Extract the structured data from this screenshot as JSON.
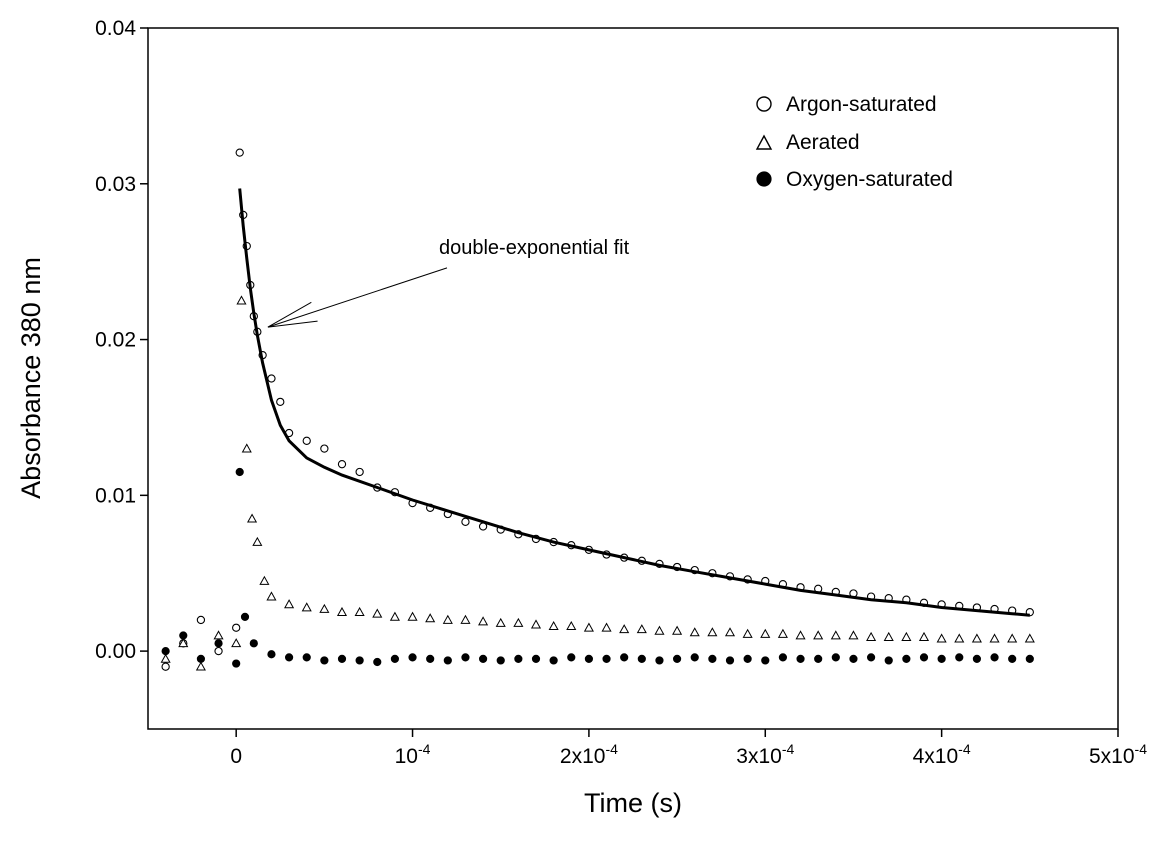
{
  "chart_data": {
    "type": "scatter",
    "xlabel": "Time (s)",
    "ylabel": "Absorbance 380 nm",
    "xlim": [
      -5e-05,
      0.0005
    ],
    "ylim": [
      -0.005,
      0.04
    ],
    "x_ticks": [
      {
        "value": 0,
        "base": "0",
        "exp": ""
      },
      {
        "value": 0.0001,
        "base": "10",
        "exp": "-4"
      },
      {
        "value": 0.0002,
        "base": "2x10",
        "exp": "-4"
      },
      {
        "value": 0.0003,
        "base": "3x10",
        "exp": "-4"
      },
      {
        "value": 0.0004,
        "base": "4x10",
        "exp": "-4"
      },
      {
        "value": 0.0005,
        "base": "5x10",
        "exp": "-4"
      }
    ],
    "y_ticks": [
      {
        "value": 0,
        "label": "0.00"
      },
      {
        "value": 0.01,
        "label": "0.01"
      },
      {
        "value": 0.02,
        "label": "0.02"
      },
      {
        "value": 0.03,
        "label": "0.03"
      },
      {
        "value": 0.04,
        "label": "0.04"
      }
    ],
    "grid": false,
    "legend_position": "top-right",
    "series": [
      {
        "name": "Argon-saturated",
        "marker": "open-circle",
        "x": [
          -4e-05,
          -3e-05,
          -2e-05,
          -1e-05,
          0,
          2e-06,
          4e-06,
          6e-06,
          8e-06,
          1e-05,
          1.2e-05,
          1.5e-05,
          2e-05,
          2.5e-05,
          3e-05,
          4e-05,
          5e-05,
          6e-05,
          7e-05,
          8e-05,
          9e-05,
          0.0001,
          0.00011,
          0.00012,
          0.00013,
          0.00014,
          0.00015,
          0.00016,
          0.00017,
          0.00018,
          0.00019,
          0.0002,
          0.00021,
          0.00022,
          0.00023,
          0.00024,
          0.00025,
          0.00026,
          0.00027,
          0.00028,
          0.00029,
          0.0003,
          0.00031,
          0.00032,
          0.00033,
          0.00034,
          0.00035,
          0.00036,
          0.00037,
          0.00038,
          0.00039,
          0.0004,
          0.00041,
          0.00042,
          0.00043,
          0.00044,
          0.00045
        ],
        "y": [
          -0.001,
          0.0005,
          0.002,
          0,
          0.0015,
          0.032,
          0.028,
          0.026,
          0.0235,
          0.0215,
          0.0205,
          0.019,
          0.0175,
          0.016,
          0.014,
          0.0135,
          0.013,
          0.012,
          0.0115,
          0.0105,
          0.0102,
          0.0095,
          0.0092,
          0.0088,
          0.0083,
          0.008,
          0.0078,
          0.0075,
          0.0072,
          0.007,
          0.0068,
          0.0065,
          0.0062,
          0.006,
          0.0058,
          0.0056,
          0.0054,
          0.0052,
          0.005,
          0.0048,
          0.0046,
          0.0045,
          0.0043,
          0.0041,
          0.004,
          0.0038,
          0.0037,
          0.0035,
          0.0034,
          0.0033,
          0.0031,
          0.003,
          0.0029,
          0.0028,
          0.0027,
          0.0026,
          0.0025
        ]
      },
      {
        "name": "Aerated",
        "marker": "open-triangle",
        "x": [
          -4e-05,
          -3e-05,
          -2e-05,
          -1e-05,
          0,
          3e-06,
          6e-06,
          9e-06,
          1.2e-05,
          1.6e-05,
          2e-05,
          3e-05,
          4e-05,
          5e-05,
          6e-05,
          7e-05,
          8e-05,
          9e-05,
          0.0001,
          0.00011,
          0.00012,
          0.00013,
          0.00014,
          0.00015,
          0.00016,
          0.00017,
          0.00018,
          0.00019,
          0.0002,
          0.00021,
          0.00022,
          0.00023,
          0.00024,
          0.00025,
          0.00026,
          0.00027,
          0.00028,
          0.00029,
          0.0003,
          0.00031,
          0.00032,
          0.00033,
          0.00034,
          0.00035,
          0.00036,
          0.00037,
          0.00038,
          0.00039,
          0.0004,
          0.00041,
          0.00042,
          0.00043,
          0.00044,
          0.00045
        ],
        "y": [
          -0.0005,
          0.0005,
          -0.001,
          0.001,
          0.0005,
          0.0225,
          0.013,
          0.0085,
          0.007,
          0.0045,
          0.0035,
          0.003,
          0.0028,
          0.0027,
          0.0025,
          0.0025,
          0.0024,
          0.0022,
          0.0022,
          0.0021,
          0.002,
          0.002,
          0.0019,
          0.0018,
          0.0018,
          0.0017,
          0.0016,
          0.0016,
          0.0015,
          0.0015,
          0.0014,
          0.0014,
          0.0013,
          0.0013,
          0.0012,
          0.0012,
          0.0012,
          0.0011,
          0.0011,
          0.0011,
          0.001,
          0.001,
          0.001,
          0.001,
          0.0009,
          0.0009,
          0.0009,
          0.0009,
          0.0008,
          0.0008,
          0.0008,
          0.0008,
          0.0008,
          0.0008
        ]
      },
      {
        "name": "Oxygen-saturated",
        "marker": "filled-circle",
        "x": [
          -4e-05,
          -3e-05,
          -2e-05,
          -1e-05,
          0,
          2e-06,
          5e-06,
          1e-05,
          2e-05,
          3e-05,
          4e-05,
          5e-05,
          6e-05,
          7e-05,
          8e-05,
          9e-05,
          0.0001,
          0.00011,
          0.00012,
          0.00013,
          0.00014,
          0.00015,
          0.00016,
          0.00017,
          0.00018,
          0.00019,
          0.0002,
          0.00021,
          0.00022,
          0.00023,
          0.00024,
          0.00025,
          0.00026,
          0.00027,
          0.00028,
          0.00029,
          0.0003,
          0.00031,
          0.00032,
          0.00033,
          0.00034,
          0.00035,
          0.00036,
          0.00037,
          0.00038,
          0.00039,
          0.0004,
          0.00041,
          0.00042,
          0.00043,
          0.00044,
          0.00045
        ],
        "y": [
          0,
          0.001,
          -0.0005,
          0.0005,
          -0.0008,
          0.0115,
          0.0022,
          0.0005,
          -0.0002,
          -0.0004,
          -0.0004,
          -0.0006,
          -0.0005,
          -0.0006,
          -0.0007,
          -0.0005,
          -0.0004,
          -0.0005,
          -0.0006,
          -0.0004,
          -0.0005,
          -0.0006,
          -0.0005,
          -0.0005,
          -0.0006,
          -0.0004,
          -0.0005,
          -0.0005,
          -0.0004,
          -0.0005,
          -0.0006,
          -0.0005,
          -0.0004,
          -0.0005,
          -0.0006,
          -0.0005,
          -0.0006,
          -0.0004,
          -0.0005,
          -0.0005,
          -0.0004,
          -0.0005,
          -0.0004,
          -0.0006,
          -0.0005,
          -0.0004,
          -0.0005,
          -0.0004,
          -0.0005,
          -0.0004,
          -0.0005,
          -0.0005
        ]
      }
    ],
    "fit": {
      "type": "line",
      "x": [
        2e-06,
        4e-06,
        6e-06,
        8e-06,
        1e-05,
        1.2e-05,
        1.5e-05,
        2e-05,
        2.5e-05,
        3e-05,
        4e-05,
        5e-05,
        6e-05,
        8e-05,
        0.0001,
        0.00012,
        0.00014,
        0.00016,
        0.00018,
        0.0002,
        0.00022,
        0.00024,
        0.00026,
        0.00028,
        0.0003,
        0.00032,
        0.00034,
        0.00036,
        0.00038,
        0.0004,
        0.00042,
        0.00044,
        0.00045
      ],
      "y": [
        0.0297,
        0.0273,
        0.0252,
        0.0233,
        0.0217,
        0.0203,
        0.0185,
        0.0161,
        0.0145,
        0.0135,
        0.0124,
        0.0118,
        0.0113,
        0.0105,
        0.0097,
        0.009,
        0.0083,
        0.0076,
        0.007,
        0.0065,
        0.006,
        0.0055,
        0.0051,
        0.0047,
        0.0043,
        0.0039,
        0.0036,
        0.0033,
        0.0031,
        0.0028,
        0.0026,
        0.0024,
        0.0023
      ]
    },
    "annotations": [
      {
        "text": "double-exponential fit",
        "x": 0.000115,
        "y": 0.0255,
        "arrow_to_x": 1.8e-05,
        "arrow_to_y": 0.0208
      }
    ]
  }
}
